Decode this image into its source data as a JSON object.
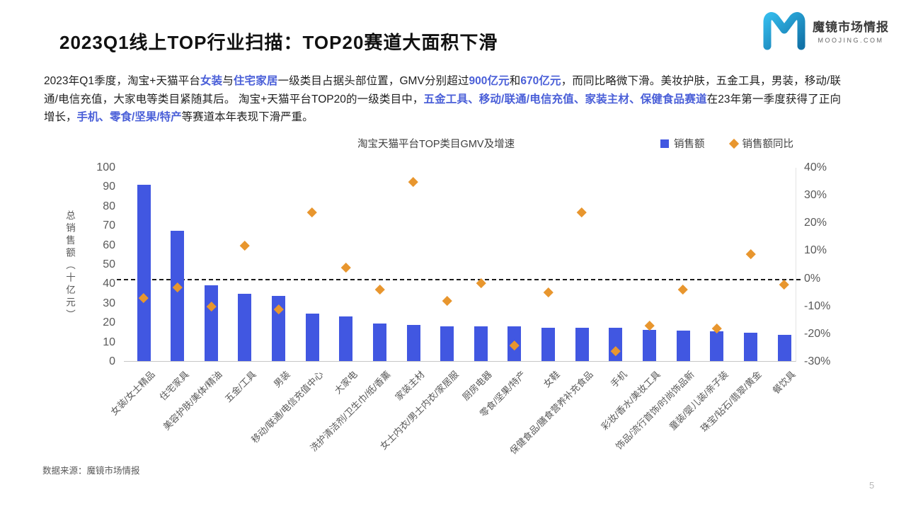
{
  "slide": {
    "title": "2023Q1线上TOP行业扫描：TOP20赛道大面积下滑",
    "source": "数据来源：魔镜市场情报",
    "page_number": "5"
  },
  "logo": {
    "name": "魔镜市场情报",
    "domain": "MOOJING.COM",
    "gradient_start": "#33B9EA",
    "gradient_end": "#1273A8"
  },
  "intro": {
    "highlight_color": "#4A5FD8",
    "segments": [
      {
        "t": "2023年Q1季度，淘宝+天猫平台",
        "hl": false
      },
      {
        "t": "女装",
        "hl": true
      },
      {
        "t": "与",
        "hl": false
      },
      {
        "t": "住宅家居",
        "hl": true
      },
      {
        "t": "一级类目占据头部位置，GMV分别超过",
        "hl": false
      },
      {
        "t": "900亿元",
        "hl": true
      },
      {
        "t": "和",
        "hl": false
      },
      {
        "t": "670亿元",
        "hl": true
      },
      {
        "t": "，而同比略微下滑。美妆护肤，五金工具，男装，移动/联通/电信充值，大家电等类目紧随其后。 淘宝+天猫平台TOP20的一级类目中，",
        "hl": false
      },
      {
        "t": "五金工具、移动/联通/电信充值、家装主材、保健食品赛道",
        "hl": true
      },
      {
        "t": "在23年第一季度获得了正向增长，",
        "hl": false
      },
      {
        "t": "手机、零食/坚果/特产",
        "hl": true
      },
      {
        "t": "等赛道本年表现下滑严重。",
        "hl": false
      }
    ]
  },
  "chart_data": {
    "type": "bar",
    "subtype": "combo-bar-and-diamond-scatter",
    "title": "淘宝天猫平台TOP类目GMV及增速",
    "grid": false,
    "legend_position": "top-right",
    "legend": [
      {
        "label": "销售额",
        "marker": "square",
        "color": "#4157E1"
      },
      {
        "label": "销售额同比",
        "marker": "diamond",
        "color": "#E8962E"
      }
    ],
    "categories": [
      "女装/女士精品",
      "住宅家具",
      "美容护肤/美体/精油",
      "五金/工具",
      "男装",
      "移动/联通/电信充值中心",
      "大家电",
      "洗护清洁剂/卫生巾/纸/香薰",
      "家装主材",
      "女士内衣/男士内衣/家居服",
      "厨房电器",
      "零食/坚果/特产",
      "女鞋",
      "保健食品/膳食营养补充食品",
      "手机",
      "彩妆/香水/美妆工具",
      "饰品/流行首饰/时尚饰品新",
      "童装/婴儿装/亲子装",
      "珠宝/钻石/翡翠/黄金",
      "餐饮具"
    ],
    "series": [
      {
        "name": "销售额",
        "type": "bar",
        "axis": "left",
        "color": "#4157E1",
        "values": [
          91,
          67,
          39,
          34.5,
          33.5,
          24.5,
          23,
          19.5,
          18.5,
          18,
          18,
          17.8,
          17,
          17.3,
          17,
          16,
          15.7,
          15.4,
          14.5,
          13.5
        ]
      },
      {
        "name": "销售额同比",
        "type": "scatter",
        "marker": "diamond",
        "axis": "right",
        "color": "#E8962E",
        "values": [
          -7,
          -3,
          -10,
          12,
          -11,
          24,
          4,
          -4,
          35,
          -8,
          -1.5,
          -24,
          -5,
          24,
          -26,
          -17,
          -4,
          -18,
          9,
          -2
        ]
      }
    ],
    "left_axis": {
      "label": "总销售额（十亿元）",
      "min": 0,
      "max": 100,
      "step": 10,
      "ticks": [
        "100",
        "90",
        "80",
        "70",
        "60",
        "50",
        "40",
        "30",
        "20",
        "10",
        "0"
      ]
    },
    "right_axis": {
      "min": -30,
      "max": 40,
      "step": 10,
      "format": "percent",
      "ticks": [
        "40%",
        "30%",
        "20%",
        "10%",
        "0%",
        "-10%",
        "-20%",
        "-30%"
      ]
    },
    "zero_line": {
      "style": "dashed",
      "color": "#1b1b1b",
      "at_right_axis_value": 0
    }
  }
}
